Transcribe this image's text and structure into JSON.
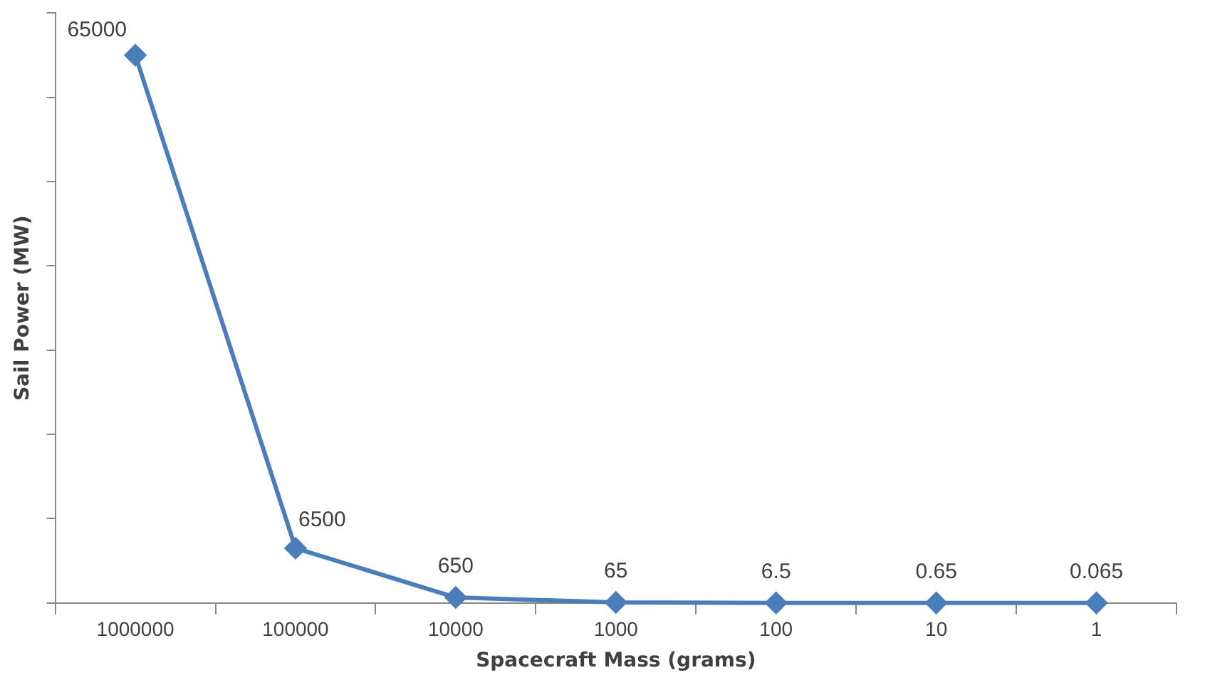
{
  "chart_data": {
    "type": "line",
    "xlabel": "Spacecraft Mass (grams)",
    "ylabel": "Sail Power (MW)",
    "categories": [
      "1000000",
      "100000",
      "10000",
      "1000",
      "100",
      "10",
      "1"
    ],
    "series": [
      {
        "color": "#4a7ebb",
        "values": [
          65000,
          6500,
          650,
          65,
          6.5,
          0.65,
          0.065
        ]
      }
    ],
    "data_labels": true,
    "tick_labels": "x",
    "grid": false,
    "legend": false,
    "marker": "diamond",
    "line_style": "solid"
  }
}
